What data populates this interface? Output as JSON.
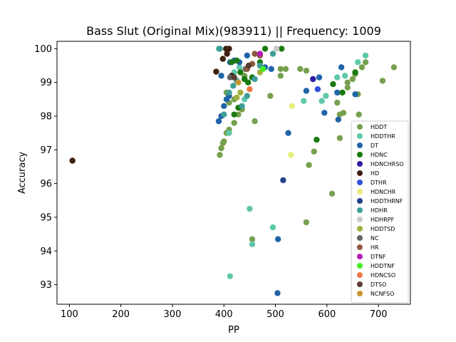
{
  "chart_data": {
    "type": "scatter",
    "title": "Bass Slut (Original Mix)(983911) || Frequency: 1009",
    "xlabel": "PP",
    "ylabel": "Accuracy",
    "xlim": [
      76,
      762
    ],
    "ylim": [
      92.42,
      100.22
    ],
    "xticks": [
      100,
      200,
      300,
      400,
      500,
      600,
      700
    ],
    "yticks": [
      93,
      94,
      95,
      96,
      97,
      98,
      99,
      100
    ],
    "grid": false,
    "legend_position": "center-right",
    "series": [
      {
        "name": "HDDT",
        "color": "#76a04e",
        "points": [
          [
            392,
            96.85
          ],
          [
            395,
            97.05
          ],
          [
            398,
            97.2
          ],
          [
            400,
            97.25
          ],
          [
            405,
            97.5
          ],
          [
            410,
            97.6
          ],
          [
            420,
            97.8
          ],
          [
            428,
            98.05
          ],
          [
            435,
            98.2
          ],
          [
            405,
            98.7
          ],
          [
            410,
            98.4
          ],
          [
            420,
            98.5
          ],
          [
            440,
            99.2
          ],
          [
            460,
            97.85
          ],
          [
            490,
            98.6
          ],
          [
            510,
            99.4
          ],
          [
            520,
            99.4
          ],
          [
            510,
            99.2
          ],
          [
            548,
            99.4
          ],
          [
            560,
            99.35
          ],
          [
            575,
            96.95
          ],
          [
            565,
            96.55
          ],
          [
            560,
            94.85
          ],
          [
            455,
            94.35
          ],
          [
            610,
            95.7
          ],
          [
            620,
            98.4
          ],
          [
            625,
            98.05
          ],
          [
            632,
            98.1
          ],
          [
            640,
            99.0
          ],
          [
            650,
            99.1
          ],
          [
            655,
            99.25
          ],
          [
            668,
            99.45
          ],
          [
            675,
            99.6
          ],
          [
            640,
            98.85
          ],
          [
            660,
            98.65
          ],
          [
            662,
            98.05
          ],
          [
            625,
            97.35
          ],
          [
            708,
            99.05
          ],
          [
            730,
            99.45
          ]
        ]
      },
      {
        "name": "HDDTHR",
        "color": "#5fc8aa",
        "points": [
          [
            390,
            100.0
          ],
          [
            410,
            97.5
          ],
          [
            412,
            93.25
          ],
          [
            450,
            95.25
          ],
          [
            455,
            94.2
          ],
          [
            495,
            94.7
          ],
          [
            555,
            98.45
          ],
          [
            590,
            98.45
          ],
          [
            598,
            98.6
          ],
          [
            620,
            99.15
          ],
          [
            635,
            99.2
          ],
          [
            660,
            99.6
          ],
          [
            675,
            99.8
          ],
          [
            420,
            99.3
          ],
          [
            430,
            99.45
          ],
          [
            440,
            98.5
          ]
        ]
      },
      {
        "name": "DT",
        "color": "#1f64a8",
        "points": [
          [
            390,
            97.85
          ],
          [
            395,
            98.0
          ],
          [
            400,
            98.3
          ],
          [
            405,
            98.5
          ],
          [
            410,
            98.6
          ],
          [
            412,
            99.6
          ],
          [
            420,
            99.65
          ],
          [
            430,
            99.6
          ],
          [
            445,
            99.8
          ],
          [
            480,
            99.45
          ],
          [
            492,
            99.4
          ],
          [
            505,
            94.35
          ],
          [
            504,
            92.75
          ],
          [
            525,
            97.5
          ],
          [
            560,
            98.75
          ],
          [
            585,
            99.15
          ],
          [
            595,
            98.1
          ],
          [
            620,
            98.7
          ],
          [
            622,
            97.9
          ],
          [
            628,
            99.45
          ],
          [
            655,
            98.65
          ],
          [
            395,
            99.2
          ]
        ]
      },
      {
        "name": "HDNC",
        "color": "#1a7a10",
        "points": [
          [
            415,
            99.6
          ],
          [
            425,
            99.65
          ],
          [
            432,
            99.3
          ],
          [
            440,
            99.1
          ],
          [
            447,
            99.0
          ],
          [
            455,
            99.15
          ],
          [
            470,
            99.6
          ],
          [
            480,
            100.0
          ],
          [
            512,
            100.0
          ],
          [
            420,
            98.05
          ],
          [
            428,
            98.25
          ],
          [
            580,
            97.3
          ],
          [
            612,
            98.95
          ],
          [
            630,
            98.7
          ],
          [
            655,
            99.3
          ]
        ]
      },
      {
        "name": "HDNCHRSO",
        "color": "#2d1fa0",
        "points": [
          [
            573,
            99.1
          ]
        ]
      },
      {
        "name": "HD",
        "color": "#3d1f10",
        "points": [
          [
            106,
            96.68
          ],
          [
            385,
            99.32
          ],
          [
            398,
            99.7
          ],
          [
            404,
            100.0
          ],
          [
            410,
            100.0
          ],
          [
            406,
            99.85
          ],
          [
            415,
            99.2
          ]
        ]
      },
      {
        "name": "DTHR",
        "color": "#3050dc",
        "points": [
          [
            582,
            98.8
          ]
        ]
      },
      {
        "name": "HDNCHR",
        "color": "#e6f078",
        "points": [
          [
            530,
            96.85
          ],
          [
            532,
            98.3
          ]
        ]
      },
      {
        "name": "HDDTHRNF",
        "color": "#24418a",
        "points": [
          [
            515,
            96.1
          ]
        ]
      },
      {
        "name": "HDHR",
        "color": "#3f9e98",
        "points": [
          [
            392,
            100.0
          ],
          [
            400,
            98.05
          ],
          [
            410,
            98.7
          ],
          [
            418,
            98.9
          ],
          [
            425,
            99.05
          ],
          [
            435,
            98.3
          ],
          [
            445,
            98.6
          ],
          [
            460,
            99.1
          ],
          [
            470,
            99.5
          ],
          [
            495,
            99.85
          ]
        ]
      },
      {
        "name": "HDHRPF",
        "color": "#c8c8c8",
        "points": [
          [
            502,
            100.0
          ]
        ]
      },
      {
        "name": "HDDTSD",
        "color": "#a0b03c",
        "points": [
          [
            425,
            98.55
          ],
          [
            432,
            98.7
          ],
          [
            470,
            99.3
          ]
        ]
      },
      {
        "name": "NC",
        "color": "#646464",
        "points": [
          [
            412,
            99.15
          ],
          [
            442,
            99.4
          ]
        ]
      },
      {
        "name": "HR",
        "color": "#8c5a3c",
        "points": [
          [
            445,
            99.4
          ],
          [
            455,
            99.55
          ],
          [
            460,
            99.85
          ],
          [
            470,
            99.8
          ]
        ]
      },
      {
        "name": "DTNF",
        "color": "#b41eb4",
        "points": [
          [
            470,
            99.85
          ]
        ]
      },
      {
        "name": "HDDTNF",
        "color": "#46f01e",
        "points": [
          [
            476,
            99.4
          ]
        ]
      },
      {
        "name": "HDNCSO",
        "color": "#f07846",
        "points": [
          [
            450,
            98.8
          ]
        ]
      },
      {
        "name": "DTSO",
        "color": "#5a3c32",
        "points": [
          [
            420,
            99.15
          ],
          [
            448,
            99.5
          ]
        ]
      },
      {
        "name": "NCNFSO",
        "color": "#c8962d",
        "points": [
          [
            428,
            99.0
          ]
        ]
      }
    ]
  }
}
